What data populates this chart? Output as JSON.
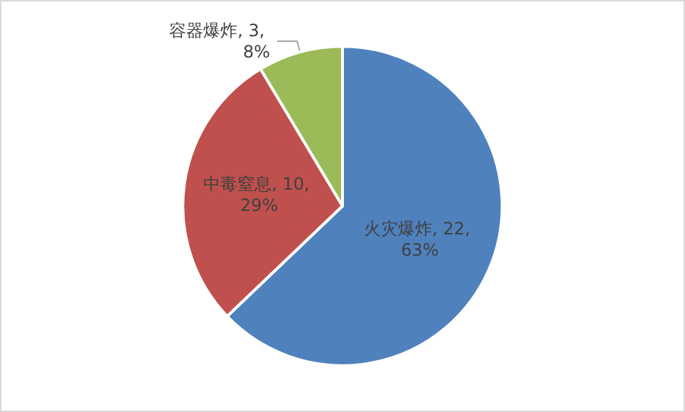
{
  "chart_data": {
    "type": "pie",
    "categories": [
      "火灾爆炸",
      "中毒窒息",
      "容器爆炸"
    ],
    "values": [
      22,
      10,
      3
    ],
    "colors": [
      "#4f81bd",
      "#c0504d",
      "#9bbb59"
    ],
    "value_labels": [
      "22, 63%",
      "10, 29%",
      "3, 8%"
    ],
    "legend": false
  }
}
